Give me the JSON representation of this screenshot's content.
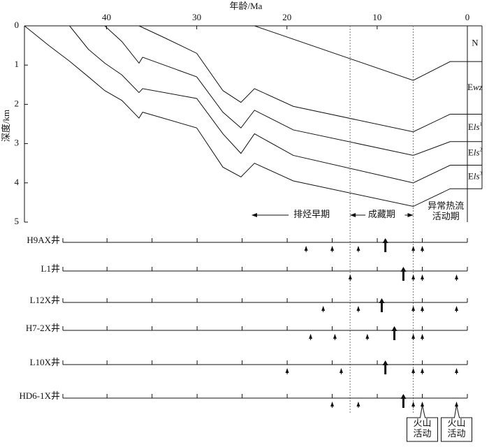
{
  "chart_data": [
    {
      "type": "line",
      "x_label": "年龄/Ma",
      "y_label": "深度/km",
      "xlim": [
        49.1,
        0
      ],
      "ylim": [
        0,
        5
      ],
      "xticks": [
        40,
        30,
        20,
        10,
        0
      ],
      "yticks": [
        0,
        1,
        2,
        3,
        4,
        5
      ],
      "series": [
        {
          "x": [
            23.6,
            6.0,
            1.9,
            0
          ],
          "values": [
            0,
            1.39,
            0.91,
            0.91
          ]
        },
        {
          "x": [
            36.4,
            33.6,
            30.0,
            27.1,
            25.1,
            23.6,
            19.3,
            6.0,
            1.9,
            0
          ],
          "values": [
            0,
            0.3,
            0.7,
            1.65,
            1.95,
            1.6,
            2.05,
            2.7,
            2.25,
            2.25
          ]
        },
        {
          "x": [
            40.2,
            38.3,
            36.4,
            36.0,
            30.0,
            27.1,
            25.1,
            23.6,
            19.3,
            6.0,
            1.9,
            0
          ],
          "values": [
            0,
            0.4,
            0.95,
            0.8,
            1.3,
            2.2,
            2.6,
            2.15,
            2.65,
            3.3,
            2.95,
            2.95
          ]
        },
        {
          "x": [
            44.1,
            42.0,
            40.2,
            38.3,
            36.4,
            36.0,
            30.0,
            27.1,
            25.1,
            23.6,
            19.3,
            6.0,
            1.9,
            0
          ],
          "values": [
            0,
            0.6,
            0.95,
            1.25,
            1.7,
            1.6,
            1.85,
            2.75,
            3.25,
            2.75,
            3.3,
            4.0,
            3.55,
            3.55
          ]
        },
        {
          "x": [
            49.1,
            46.4,
            44.1,
            42.0,
            40.2,
            38.3,
            36.4,
            36.0,
            30.0,
            27.1,
            25.1,
            23.6,
            19.3,
            6.0,
            1.9,
            0
          ],
          "values": [
            0,
            0.5,
            0.9,
            1.3,
            1.65,
            1.9,
            2.35,
            2.2,
            2.6,
            3.6,
            3.85,
            3.5,
            3.95,
            4.6,
            4.15,
            4.15
          ]
        }
      ],
      "formations": [
        {
          "main": "N"
        },
        {
          "main": "E",
          "italic": "wz"
        },
        {
          "main": "E",
          "italic": "ls",
          "sup": "1"
        },
        {
          "main": "E",
          "italic": "ls",
          "sup": "2"
        },
        {
          "main": "E",
          "italic": "ls",
          "sup": "3"
        }
      ],
      "boundaries": [
        13,
        6
      ],
      "periods": [
        {
          "lines": [
            "排烃早期"
          ]
        },
        {
          "lines": [
            "成藏期"
          ]
        },
        {
          "lines": [
            "异常热流",
            "活动期"
          ]
        }
      ]
    },
    {
      "type": "events",
      "xlim": [
        44.9,
        0
      ],
      "xticks": [
        40,
        35,
        30,
        25,
        20,
        15,
        10,
        5,
        0
      ],
      "wells": [
        {
          "name": "H9AX井",
          "minor": [
            17.9,
            15.0,
            12.1,
            6.0,
            5.0
          ],
          "major": [
            9.1
          ]
        },
        {
          "name": "L1井",
          "minor": [
            13.0,
            6.0,
            5.0,
            1.2
          ],
          "major": [
            7.1
          ]
        },
        {
          "name": "L12X井",
          "minor": [
            16.0,
            12.1,
            6.0,
            5.0,
            1.2
          ],
          "major": [
            9.5
          ]
        },
        {
          "name": "H7-2X井",
          "minor": [
            17.4,
            14.7,
            11.1,
            6.0,
            5.0
          ],
          "major": [
            8.1
          ]
        },
        {
          "name": "L10X井",
          "minor": [
            20.0,
            14.0,
            6.0,
            5.0,
            1.2
          ],
          "major": [
            9.1
          ]
        },
        {
          "name": "HD6-1X井",
          "minor": [
            15.0,
            12.1,
            6.0,
            5.0,
            1.2
          ],
          "major": [
            7.1
          ]
        }
      ],
      "volcanic": {
        "lines": [
          "火山",
          "活动"
        ],
        "ages": [
          5.0,
          1.2
        ]
      }
    }
  ]
}
